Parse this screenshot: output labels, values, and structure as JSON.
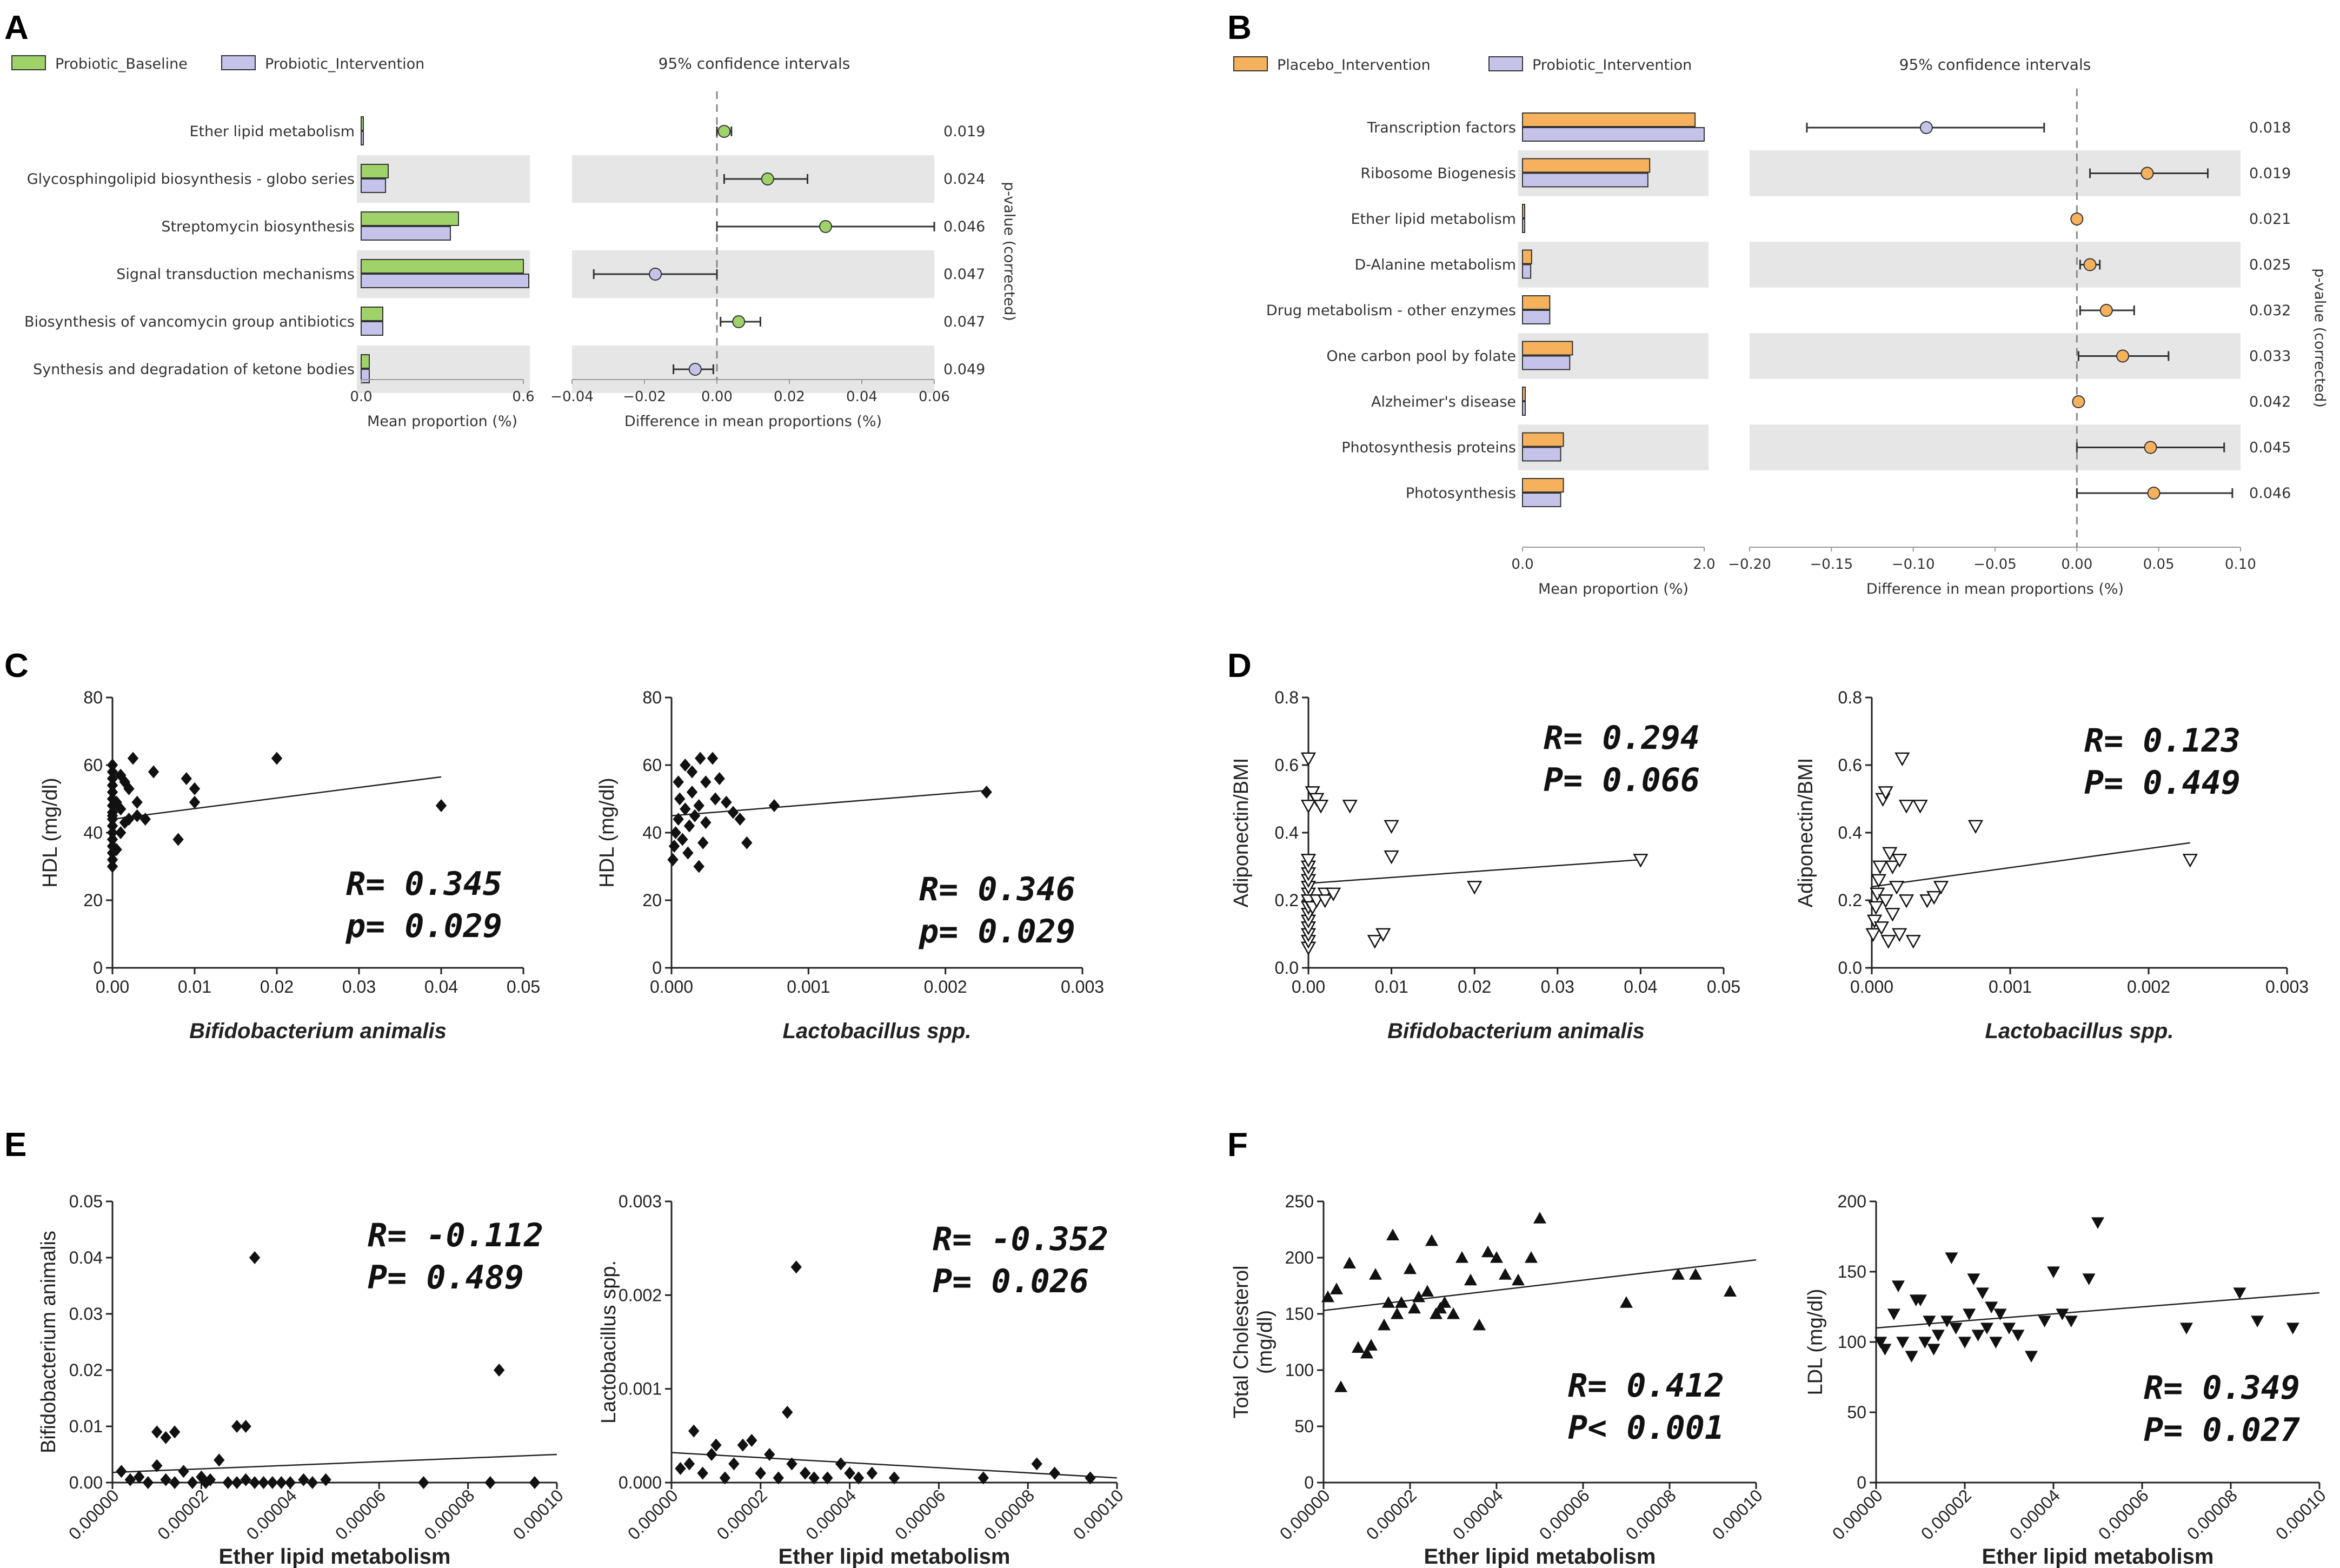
{
  "colors": {
    "baseline": "#9fd36a",
    "intervention_lav": "#c5c3ea",
    "placebo": "#f6b15d",
    "shade": "#e6e6e6",
    "outline": "#333333"
  },
  "panels": {
    "A": {
      "label": "A",
      "legend": [
        "Probiotic_Baseline",
        "Probiotic_Intervention"
      ],
      "ci_title": "95% confidence intervals",
      "xlabel_left": "Mean proportion (%)",
      "xlabel_right": "Difference in mean proportions (%)",
      "pvalue_label": "p-value (corrected)"
    },
    "B": {
      "label": "B",
      "legend": [
        "Placebo_Intervention",
        "Probiotic_Intervention"
      ],
      "ci_title": "95% confidence intervals",
      "xlabel_left": "Mean proportion (%)",
      "xlabel_right": "Difference in mean proportions (%)",
      "pvalue_label": "p-value (corrected)"
    },
    "C": {
      "label": "C"
    },
    "D": {
      "label": "D"
    },
    "E": {
      "label": "E"
    },
    "F": {
      "label": "F"
    }
  },
  "chart_data": [
    {
      "id": "A",
      "type": "bar",
      "categories": [
        "Ether lipid metabolism",
        "Glycosphingolipid biosynthesis - globo series",
        "Streptomycin biosynthesis",
        "Signal transduction mechanisms",
        "Biosynthesis of vancomycin group antibiotics",
        "Synthesis and degradation of ketone bodies"
      ],
      "series": [
        {
          "name": "Probiotic_Baseline",
          "values": [
            0.0,
            0.1,
            0.36,
            0.6,
            0.08,
            0.03
          ]
        },
        {
          "name": "Probiotic_Intervention",
          "values": [
            0.0,
            0.09,
            0.33,
            0.62,
            0.08,
            0.03
          ]
        }
      ],
      "bar_xlim": [
        0,
        0.6
      ],
      "bar_ticks": [
        "0.0",
        "0.6"
      ],
      "ci": [
        {
          "diff": 0.002,
          "lo": 0.0,
          "hi": 0.004,
          "favors": "Probiotic_Baseline"
        },
        {
          "diff": 0.014,
          "lo": 0.002,
          "hi": 0.025,
          "favors": "Probiotic_Baseline"
        },
        {
          "diff": 0.03,
          "lo": 0.0,
          "hi": 0.06,
          "favors": "Probiotic_Baseline"
        },
        {
          "diff": -0.017,
          "lo": -0.034,
          "hi": 0.0,
          "favors": "Probiotic_Intervention"
        },
        {
          "diff": 0.006,
          "lo": 0.001,
          "hi": 0.012,
          "favors": "Probiotic_Baseline"
        },
        {
          "diff": -0.006,
          "lo": -0.012,
          "hi": -0.001,
          "favors": "Probiotic_Intervention"
        }
      ],
      "ci_xlim": [
        -0.04,
        0.06
      ],
      "ci_ticks": [
        "−0.04",
        "−0.02",
        "0.00",
        "0.02",
        "0.04",
        "0.06"
      ],
      "pvalues": [
        "0.019",
        "0.024",
        "0.046",
        "0.047",
        "0.047",
        "0.049"
      ]
    },
    {
      "id": "B",
      "type": "bar",
      "categories": [
        "Transcription factors",
        "Ribosome Biogenesis",
        "Ether lipid metabolism",
        "D-Alanine metabolism",
        "Drug metabolism - other enzymes",
        "One carbon pool by folate",
        "Alzheimer's disease",
        "Photosynthesis proteins",
        "Photosynthesis"
      ],
      "series": [
        {
          "name": "Placebo_Intervention",
          "values": [
            1.9,
            1.4,
            0.0,
            0.1,
            0.3,
            0.55,
            0.03,
            0.45,
            0.45
          ]
        },
        {
          "name": "Probiotic_Intervention",
          "values": [
            2.0,
            1.38,
            0.0,
            0.09,
            0.3,
            0.52,
            0.03,
            0.42,
            0.42
          ]
        }
      ],
      "bar_xlim": [
        0,
        2.0
      ],
      "bar_ticks": [
        "0.0",
        "2.0"
      ],
      "ci": [
        {
          "diff": -0.092,
          "lo": -0.165,
          "hi": -0.02,
          "favors": "Probiotic_Intervention"
        },
        {
          "diff": 0.043,
          "lo": 0.008,
          "hi": 0.08,
          "favors": "Placebo_Intervention"
        },
        {
          "diff": 0.0,
          "lo": 0.0,
          "hi": 0.0,
          "favors": "Placebo_Intervention"
        },
        {
          "diff": 0.008,
          "lo": 0.002,
          "hi": 0.014,
          "favors": "Placebo_Intervention"
        },
        {
          "diff": 0.018,
          "lo": 0.002,
          "hi": 0.035,
          "favors": "Placebo_Intervention"
        },
        {
          "diff": 0.028,
          "lo": 0.001,
          "hi": 0.056,
          "favors": "Placebo_Intervention"
        },
        {
          "diff": 0.001,
          "lo": 0.0,
          "hi": 0.002,
          "favors": "Placebo_Intervention"
        },
        {
          "diff": 0.045,
          "lo": 0.0,
          "hi": 0.09,
          "favors": "Placebo_Intervention"
        },
        {
          "diff": 0.047,
          "lo": 0.0,
          "hi": 0.095,
          "favors": "Placebo_Intervention"
        }
      ],
      "ci_xlim": [
        -0.2,
        0.1
      ],
      "ci_ticks": [
        "−0.20",
        "−0.15",
        "−0.10",
        "−0.05",
        "0.00",
        "0.05",
        "0.10"
      ],
      "pvalues": [
        "0.018",
        "0.019",
        "0.021",
        "0.025",
        "0.032",
        "0.033",
        "0.042",
        "0.045",
        "0.046"
      ]
    },
    {
      "id": "C1",
      "type": "scatter",
      "marker": "diamond",
      "xlabel": "Bifidobacterium animalis",
      "ylabel": "HDL (mg/dl)",
      "xlim": [
        0,
        0.05
      ],
      "ylim": [
        0,
        80
      ],
      "xticks": [
        "0.00",
        "0.01",
        "0.02",
        "0.03",
        "0.04",
        "0.05"
      ],
      "yticks": [
        "0",
        "20",
        "40",
        "60",
        "80"
      ],
      "x": [
        0,
        0,
        0,
        0,
        0,
        0,
        0,
        0,
        0,
        0,
        0,
        0,
        0,
        0,
        0,
        0,
        0,
        0.0005,
        0.0005,
        0.001,
        0.001,
        0.001,
        0.0015,
        0.0015,
        0.002,
        0.002,
        0.0025,
        0.003,
        0.003,
        0.004,
        0.005,
        0.008,
        0.009,
        0.01,
        0.01,
        0.02,
        0.04
      ],
      "y": [
        30,
        32,
        34,
        36,
        38,
        40,
        42,
        44,
        46,
        48,
        50,
        52,
        54,
        56,
        58,
        60,
        45,
        35,
        49,
        47,
        57,
        40,
        55,
        43,
        44,
        53,
        62,
        49,
        45,
        44,
        58,
        38,
        56,
        49,
        53,
        62,
        48
      ],
      "fit": [
        [
          0,
          44
        ],
        [
          0.04,
          56.5
        ]
      ],
      "stats": [
        "R= 0.345",
        "p= 0.029"
      ]
    },
    {
      "id": "C2",
      "type": "scatter",
      "marker": "diamond",
      "xlabel": "Lactobacillus spp.",
      "ylabel": "HDL (mg/dl)",
      "xlim": [
        0,
        0.003
      ],
      "ylim": [
        0,
        80
      ],
      "xticks": [
        "0.000",
        "0.001",
        "0.002",
        "0.003"
      ],
      "yticks": [
        "0",
        "20",
        "40",
        "60",
        "80"
      ],
      "x": [
        1e-05,
        2e-05,
        3e-05,
        5e-05,
        5e-05,
        6e-05,
        8e-05,
        0.0001,
        0.0001,
        0.00012,
        0.00013,
        0.00015,
        0.00015,
        0.00017,
        0.0002,
        0.0002,
        0.00021,
        0.00023,
        0.00025,
        0.00025,
        0.0003,
        0.00032,
        0.00035,
        0.0004,
        0.00045,
        0.0005,
        0.00055,
        0.00075,
        0.0023
      ],
      "y": [
        32,
        36,
        40,
        44,
        55,
        50,
        38,
        47,
        60,
        34,
        42,
        58,
        52,
        45,
        30,
        48,
        62,
        37,
        55,
        43,
        62,
        50,
        56,
        49,
        46,
        44,
        37,
        48,
        52
      ],
      "fit": [
        [
          0,
          45
        ],
        [
          0.0023,
          52.5
        ]
      ],
      "stats": [
        "R= 0.346",
        "p= 0.029"
      ]
    },
    {
      "id": "D1",
      "type": "scatter",
      "marker": "triangle-down-open",
      "xlabel": "Bifidobacterium animalis",
      "ylabel": "Adiponectin/BMI",
      "xlim": [
        0,
        0.05
      ],
      "ylim": [
        0,
        0.8
      ],
      "xticks": [
        "0.00",
        "0.01",
        "0.02",
        "0.03",
        "0.04",
        "0.05"
      ],
      "yticks": [
        "0.0",
        "0.2",
        "0.4",
        "0.6",
        "0.8"
      ],
      "x": [
        0,
        0,
        0,
        0,
        0,
        0,
        0,
        0,
        0,
        0,
        0,
        0,
        0,
        0,
        0,
        0,
        0,
        0.0005,
        0.0005,
        0.001,
        0.001,
        0.0015,
        0.002,
        0.002,
        0.003,
        0.005,
        0.008,
        0.009,
        0.01,
        0.01,
        0.02,
        0.04
      ],
      "y": [
        0.06,
        0.08,
        0.1,
        0.12,
        0.14,
        0.16,
        0.18,
        0.2,
        0.22,
        0.24,
        0.26,
        0.28,
        0.3,
        0.32,
        0.48,
        0.62,
        0.2,
        0.18,
        0.52,
        0.5,
        0.2,
        0.48,
        0.22,
        0.2,
        0.22,
        0.48,
        0.08,
        0.1,
        0.42,
        0.33,
        0.24,
        0.32
      ],
      "fit": [
        [
          0,
          0.25
        ],
        [
          0.04,
          0.32
        ]
      ],
      "stats": [
        "R= 0.294",
        "P= 0.066"
      ]
    },
    {
      "id": "D2",
      "type": "scatter",
      "marker": "triangle-down-open",
      "xlabel": "Lactobacillus spp.",
      "ylabel": "Adiponectin/BMI",
      "xlim": [
        0,
        0.003
      ],
      "ylim": [
        0,
        0.8
      ],
      "xticks": [
        "0.000",
        "0.001",
        "0.002",
        "0.003"
      ],
      "yticks": [
        "0.0",
        "0.2",
        "0.4",
        "0.6",
        "0.8"
      ],
      "x": [
        1e-05,
        2e-05,
        3e-05,
        4e-05,
        5e-05,
        6e-05,
        7e-05,
        8e-05,
        0.0001,
        0.0001,
        0.00012,
        0.00013,
        0.00015,
        0.00015,
        0.00018,
        0.0002,
        0.0002,
        0.00022,
        0.00025,
        0.00025,
        0.0003,
        0.00035,
        0.0004,
        0.00045,
        0.0005,
        0.00075,
        0.0023
      ],
      "y": [
        0.1,
        0.14,
        0.18,
        0.22,
        0.26,
        0.3,
        0.12,
        0.5,
        0.2,
        0.52,
        0.08,
        0.34,
        0.16,
        0.3,
        0.24,
        0.1,
        0.32,
        0.62,
        0.48,
        0.2,
        0.08,
        0.48,
        0.2,
        0.21,
        0.24,
        0.42,
        0.32
      ],
      "fit": [
        [
          0,
          0.24
        ],
        [
          0.0023,
          0.37
        ]
      ],
      "stats": [
        "R= 0.123",
        "P= 0.449"
      ]
    },
    {
      "id": "E1",
      "type": "scatter",
      "marker": "diamond",
      "xlabel": "Ether lipid metabolism",
      "ylabel": "Bifidobacterium animalis",
      "xlim": [
        0,
        0.0001
      ],
      "ylim": [
        0,
        0.05
      ],
      "xticks": [
        "0.00000",
        "0.00002",
        "0.00004",
        "0.00006",
        "0.00008",
        "0.00010"
      ],
      "yticks": [
        "0.00",
        "0.01",
        "0.02",
        "0.03",
        "0.04",
        "0.05"
      ],
      "x": [
        2e-06,
        4e-06,
        6e-06,
        8e-06,
        1e-05,
        1.2e-05,
        1.4e-05,
        1.6e-05,
        1.8e-05,
        2e-05,
        2.2e-05,
        2.4e-05,
        2.6e-05,
        2.8e-05,
        3e-05,
        3.2e-05,
        3.4e-05,
        3.6e-05,
        3.8e-05,
        4e-05,
        4.3e-05,
        4.5e-05,
        4.8e-05,
        1e-05,
        1.2e-05,
        1.4e-05,
        2.1e-05,
        2.8e-05,
        3e-05,
        3.2e-05,
        7e-05,
        8.5e-05,
        8.7e-05,
        9.5e-05
      ],
      "y": [
        0.002,
        0.0005,
        0.001,
        0.0,
        0.003,
        0.0005,
        0.0,
        0.002,
        0.0,
        0.001,
        0.0005,
        0.004,
        0.0,
        0.0,
        0.0005,
        0.0,
        0.0,
        0.0,
        0.0,
        0.0,
        0.0005,
        0.0,
        0.0005,
        0.009,
        0.008,
        0.009,
        0.0,
        0.01,
        0.01,
        0.04,
        0.0,
        0.0,
        0.02,
        0.0
      ],
      "fit": [
        [
          0,
          0.0018
        ],
        [
          0.0001,
          0.005
        ]
      ],
      "stats": [
        "R= -0.112",
        "P= 0.489"
      ]
    },
    {
      "id": "E2",
      "type": "scatter",
      "marker": "diamond",
      "xlabel": "Ether lipid metabolism",
      "ylabel": "Lactobacillus spp.",
      "xlim": [
        0,
        0.0001
      ],
      "ylim": [
        0,
        0.003
      ],
      "xticks": [
        "0.00000",
        "0.00002",
        "0.00004",
        "0.00006",
        "0.00008",
        "0.00010"
      ],
      "yticks": [
        "0.000",
        "0.001",
        "0.002",
        "0.003"
      ],
      "x": [
        2e-06,
        4e-06,
        5e-06,
        7e-06,
        9e-06,
        1e-05,
        1.2e-05,
        1.4e-05,
        1.6e-05,
        1.8e-05,
        2e-05,
        2.2e-05,
        2.4e-05,
        2.6e-05,
        2.7e-05,
        2.8e-05,
        3e-05,
        3.2e-05,
        3.5e-05,
        3.8e-05,
        4e-05,
        4.2e-05,
        4.5e-05,
        5e-05,
        7e-05,
        8.2e-05,
        8.6e-05,
        9.4e-05
      ],
      "y": [
        0.00015,
        0.0002,
        0.00055,
        0.0001,
        0.0003,
        0.0004,
        5e-05,
        0.0002,
        0.0004,
        0.00045,
        0.0001,
        0.0003,
        5e-05,
        0.00075,
        0.0002,
        0.0023,
        0.0001,
        5e-05,
        5e-05,
        0.0002,
        0.0001,
        5e-05,
        0.0001,
        5e-05,
        5e-05,
        0.0002,
        0.0001,
        5e-05
      ],
      "fit": [
        [
          0,
          0.00032
        ],
        [
          0.0001,
          5e-05
        ]
      ],
      "stats": [
        "R= -0.352",
        "P= 0.026"
      ]
    },
    {
      "id": "F1",
      "type": "scatter",
      "marker": "triangle-up",
      "xlabel": "Ether lipid metabolism",
      "ylabel": [
        "Total Cholesterol",
        "(mg/dl)"
      ],
      "xlim": [
        0,
        0.0001
      ],
      "ylim": [
        0,
        250
      ],
      "xticks": [
        "0.00000",
        "0.00002",
        "0.00004",
        "0.00006",
        "0.00008",
        "0.00010"
      ],
      "yticks": [
        "0",
        "50",
        "100",
        "150",
        "200",
        "250"
      ],
      "x": [
        1e-06,
        3e-06,
        4e-06,
        6e-06,
        8e-06,
        1e-05,
        1.1e-05,
        1.2e-05,
        1.4e-05,
        1.5e-05,
        1.6e-05,
        1.7e-05,
        1.8e-05,
        2e-05,
        2.1e-05,
        2.2e-05,
        2.4e-05,
        2.5e-05,
        2.6e-05,
        2.7e-05,
        2.8e-05,
        3e-05,
        3.2e-05,
        3.4e-05,
        3.6e-05,
        3.8e-05,
        4e-05,
        4.2e-05,
        4.5e-05,
        4.8e-05,
        5e-05,
        7e-05,
        8.2e-05,
        8.6e-05,
        9.4e-05
      ],
      "y": [
        165,
        172,
        85,
        195,
        120,
        115,
        122,
        185,
        140,
        160,
        220,
        150,
        160,
        190,
        155,
        165,
        170,
        215,
        150,
        155,
        160,
        150,
        200,
        180,
        140,
        205,
        200,
        185,
        180,
        200,
        235,
        160,
        185,
        185,
        170
      ],
      "fit": [
        [
          0,
          153
        ],
        [
          0.0001,
          198
        ]
      ],
      "stats": [
        "R= 0.412",
        "P< 0.001"
      ]
    },
    {
      "id": "F2",
      "type": "scatter",
      "marker": "triangle-down",
      "xlabel": "Ether lipid metabolism",
      "ylabel": "LDL  (mg/dl)",
      "xlim": [
        0,
        0.0001
      ],
      "ylim": [
        0,
        200
      ],
      "xticks": [
        "0.00000",
        "0.00002",
        "0.00004",
        "0.00006",
        "0.00008",
        "0.00010"
      ],
      "yticks": [
        "0",
        "50",
        "100",
        "150",
        "200"
      ],
      "x": [
        1e-06,
        2e-06,
        4e-06,
        5e-06,
        6e-06,
        8e-06,
        9e-06,
        1e-05,
        1.1e-05,
        1.2e-05,
        1.3e-05,
        1.4e-05,
        1.6e-05,
        1.7e-05,
        1.8e-05,
        2e-05,
        2.1e-05,
        2.2e-05,
        2.3e-05,
        2.4e-05,
        2.5e-05,
        2.6e-05,
        2.7e-05,
        2.8e-05,
        3e-05,
        3.2e-05,
        3.5e-05,
        3.8e-05,
        4e-05,
        4.2e-05,
        4.4e-05,
        4.8e-05,
        5e-05,
        7e-05,
        8.2e-05,
        8.6e-05,
        9.4e-05
      ],
      "y": [
        100,
        95,
        120,
        140,
        100,
        90,
        130,
        130,
        100,
        115,
        95,
        105,
        115,
        160,
        110,
        100,
        120,
        145,
        105,
        135,
        110,
        125,
        100,
        120,
        110,
        105,
        90,
        115,
        150,
        120,
        115,
        145,
        185,
        110,
        135,
        115,
        110
      ],
      "fit": [
        [
          0,
          110
        ],
        [
          0.0001,
          135
        ]
      ],
      "stats": [
        "R= 0.349",
        "P= 0.027"
      ]
    }
  ]
}
